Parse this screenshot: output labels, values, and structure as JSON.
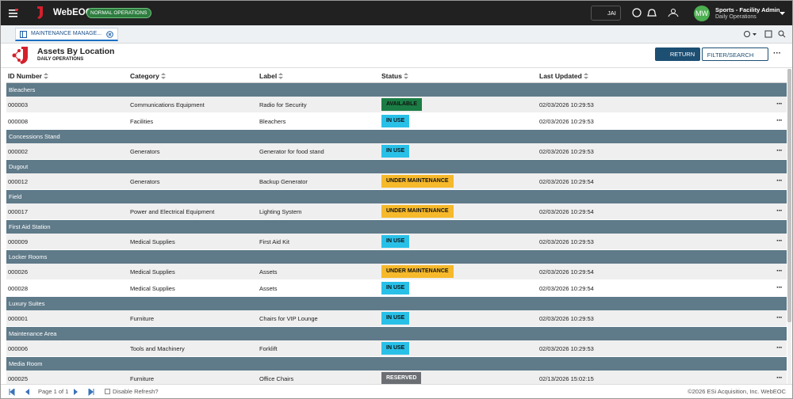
{
  "topbar": {
    "app_name": "WebEOC",
    "mode_badge": "NORMAL OPERATIONS",
    "assistant": "JAI",
    "user_initials": "MW",
    "user_name": "Sports - Facility Admin",
    "user_position": "Daily Operations"
  },
  "tab": {
    "label": "MAINTENANCE MANAGE..."
  },
  "header": {
    "title": "Assets By Location",
    "subtitle": "DAILY OPERATIONS",
    "return_button": "RETURN",
    "filter_button": "FILTER/SEARCH"
  },
  "table": {
    "columns": [
      "ID Number",
      "Category",
      "Label",
      "Status",
      "Last Updated"
    ],
    "groups": [
      {
        "name": "Bleachers",
        "rows": [
          {
            "id": "000003",
            "category": "Communications Equipment",
            "label": "Radio for Security",
            "status": "AVAILABLE",
            "status_color": "#1b7d45",
            "updated": "02/03/2026 10:29:53"
          },
          {
            "id": "000008",
            "category": "Facilities",
            "label": "Bleachers",
            "status": "IN USE",
            "status_color": "#29c0e8",
            "updated": "02/03/2026 10:29:53"
          }
        ]
      },
      {
        "name": "Concessions Stand",
        "rows": [
          {
            "id": "000002",
            "category": "Generators",
            "label": "Generator for food stand",
            "status": "IN USE",
            "status_color": "#29c0e8",
            "updated": "02/03/2026 10:29:53"
          }
        ]
      },
      {
        "name": "Dugout",
        "rows": [
          {
            "id": "000012",
            "category": "Generators",
            "label": "Backup Generator",
            "status": "UNDER MAINTENANCE",
            "status_color": "#f6b92b",
            "updated": "02/03/2026 10:29:54"
          }
        ]
      },
      {
        "name": "Field",
        "rows": [
          {
            "id": "000017",
            "category": "Power and Electrical Equipment",
            "label": "Lighting System",
            "status": "UNDER MAINTENANCE",
            "status_color": "#f6b92b",
            "updated": "02/03/2026 10:29:54"
          }
        ]
      },
      {
        "name": "First Aid Station",
        "rows": [
          {
            "id": "000009",
            "category": "Medical Supplies",
            "label": "First Aid Kit",
            "status": "IN USE",
            "status_color": "#29c0e8",
            "updated": "02/03/2026 10:29:53"
          }
        ]
      },
      {
        "name": "Locker Rooms",
        "rows": [
          {
            "id": "000026",
            "category": "Medical Supplies",
            "label": "Assets",
            "status": "UNDER MAINTENANCE",
            "status_color": "#f6b92b",
            "updated": "02/03/2026 10:29:54"
          },
          {
            "id": "000028",
            "category": "Medical Supplies",
            "label": "Assets",
            "status": "IN USE",
            "status_color": "#29c0e8",
            "updated": "02/03/2026 10:29:54"
          }
        ]
      },
      {
        "name": "Luxury Suites",
        "rows": [
          {
            "id": "000001",
            "category": "Furniture",
            "label": "Chairs for VIP Lounge",
            "status": "IN USE",
            "status_color": "#29c0e8",
            "updated": "02/03/2026 10:29:53"
          }
        ]
      },
      {
        "name": "Maintenance Area",
        "rows": [
          {
            "id": "000006",
            "category": "Tools and Machinery",
            "label": "Forklift",
            "status": "IN USE",
            "status_color": "#29c0e8",
            "updated": "02/03/2026 10:29:53"
          }
        ]
      },
      {
        "name": "Media Room",
        "rows": [
          {
            "id": "000025",
            "category": "Furniture",
            "label": "Office Chairs",
            "status": "RESERVED",
            "status_color": "#6b6f73",
            "updated": "02/13/2026 15:02:15"
          }
        ]
      }
    ]
  },
  "footer": {
    "pagination": "Page 1 of 1",
    "disable_refresh": "Disable Refresh?",
    "copyright": "©2026 ESi Acquisition, Inc. WebEOC"
  }
}
